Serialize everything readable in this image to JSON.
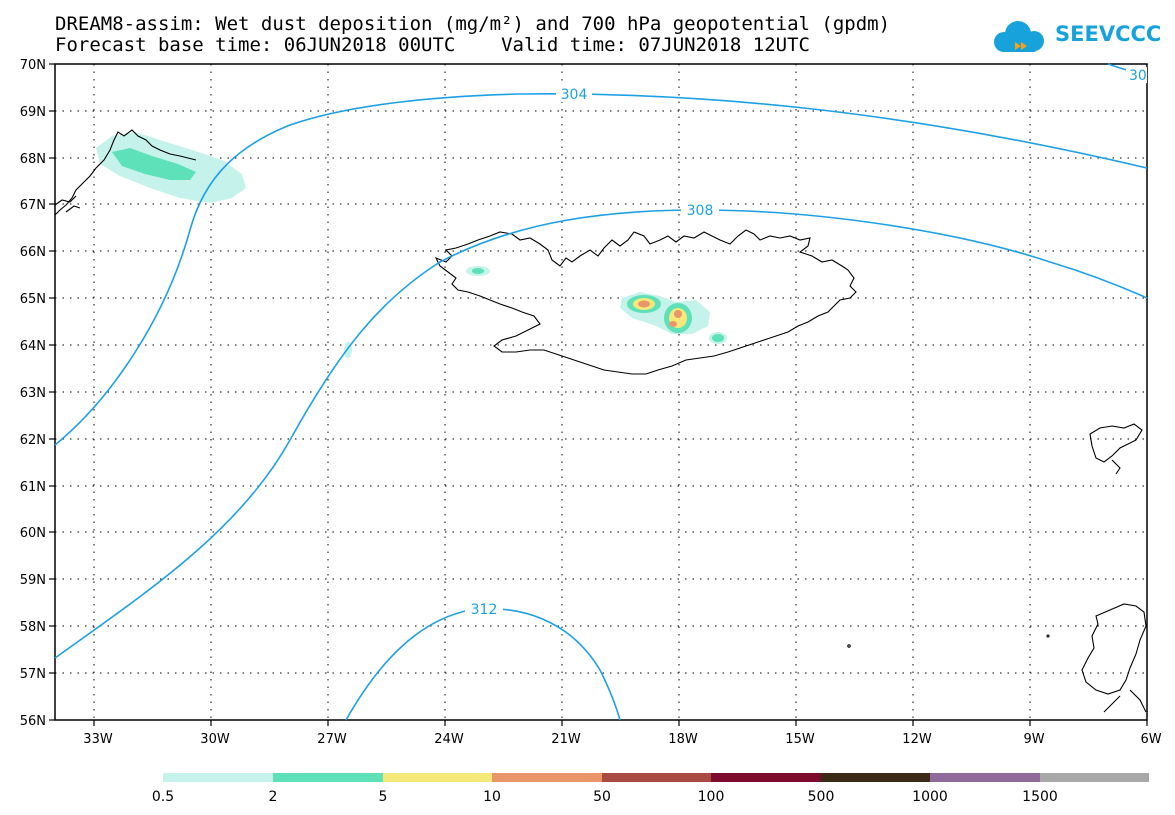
{
  "title": {
    "line1": "DREAM8-assim: Wet dust deposition (mg/m²) and 700 hPa geopotential (gpdm)",
    "line2": "Forecast base time: 06JUN2018 00UTC    Valid time: 07JUN2018 12UTC"
  },
  "logo": {
    "text": "SEEVCCC",
    "icon": "cloud-icon",
    "color": "#17a2dc"
  },
  "map": {
    "lat_range": [
      56,
      70
    ],
    "lon_range": [
      -34.2,
      -6
    ],
    "lat_labels": [
      "70N",
      "69N",
      "68N",
      "67N",
      "66N",
      "65N",
      "64N",
      "63N",
      "62N",
      "61N",
      "60N",
      "59N",
      "58N",
      "57N",
      "56N"
    ],
    "lon_labels": [
      "33W",
      "30W",
      "27W",
      "24W",
      "21W",
      "18W",
      "15W",
      "12W",
      "9W",
      "6W"
    ],
    "contour_color": "#1ea0e6",
    "contours": [
      {
        "label": "304"
      },
      {
        "label": "308"
      },
      {
        "label": "312"
      },
      {
        "label": "30"
      }
    ]
  },
  "legend": {
    "colors": [
      "#c5f2ea",
      "#5ee0b8",
      "#f5ea79",
      "#e9966b",
      "#a94a43",
      "#7d0c2e",
      "#3c2a18",
      "#8f6a9a",
      "#a8a8a8"
    ],
    "labels": [
      "0.5",
      "2",
      "5",
      "10",
      "50",
      "100",
      "500",
      "1000",
      "1500"
    ]
  }
}
